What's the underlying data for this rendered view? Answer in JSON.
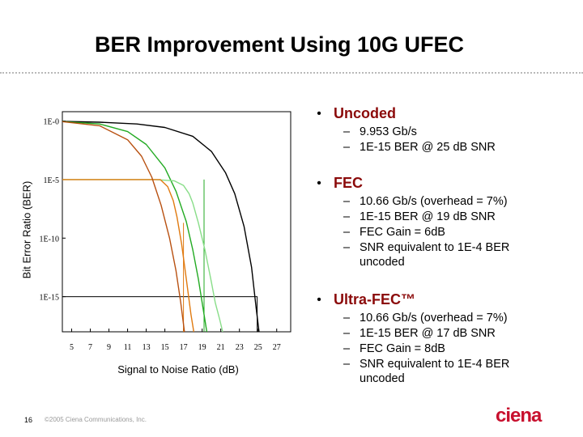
{
  "title": "BER Improvement Using 10G UFEC",
  "chart_data": {
    "type": "line",
    "xlabel": "Signal to Noise Ratio (dB)",
    "ylabel": "Bit Error Ratio (BER)",
    "x_ticks": [
      "5",
      "7",
      "9",
      "11",
      "13",
      "15",
      "17",
      "19",
      "21",
      "23",
      "25",
      "27"
    ],
    "y_ticks": [
      "1E-0",
      "1E-5",
      "1E-10",
      "1E-15"
    ],
    "xlim": [
      4,
      28.5
    ],
    "ylim": [
      -18,
      0.8
    ],
    "grid": false,
    "series": [
      {
        "color": "#000000",
        "x": [
          4,
          8,
          12,
          15,
          18,
          20,
          21.5,
          22.5,
          23.5,
          24.3,
          24.8,
          25.1
        ],
        "y": [
          -0.03,
          -0.1,
          -0.25,
          -0.55,
          -1.3,
          -2.6,
          -4.4,
          -6.2,
          -9,
          -12.5,
          -16,
          -18
        ]
      },
      {
        "color": "#22aa22",
        "x": [
          4,
          8,
          11,
          13,
          15,
          16.2,
          17.3,
          18,
          18.6,
          19.1,
          19.5
        ],
        "y": [
          -0.04,
          -0.25,
          -0.9,
          -2.0,
          -4.0,
          -6.0,
          -8.6,
          -11,
          -13.5,
          -16,
          -18
        ]
      },
      {
        "color": "#88dd88",
        "x": [
          4,
          14,
          16,
          17,
          17.6,
          18.0,
          18.6,
          19.3,
          20.0,
          20.4,
          20.9,
          21.2
        ],
        "y": [
          -5,
          -5,
          -5.1,
          -5.5,
          -6.2,
          -7.0,
          -8.7,
          -11,
          -13.8,
          -15.5,
          -17,
          -18
        ]
      },
      {
        "color": "#e07a10",
        "x": [
          4,
          14.5,
          15.3,
          15.9,
          16.3,
          16.8,
          17.3,
          17.8,
          18.1
        ],
        "y": [
          -5,
          -5,
          -5.6,
          -6.8,
          -8.2,
          -10.5,
          -13.5,
          -16.5,
          -18
        ]
      },
      {
        "color": "#b85010",
        "x": [
          4,
          8,
          11,
          12.5,
          13.6,
          14.6,
          15.5,
          16.2,
          16.7,
          17.1
        ],
        "y": [
          -0.05,
          -0.4,
          -1.6,
          -3.0,
          -4.8,
          -7.2,
          -10,
          -12.8,
          -15.5,
          -18
        ]
      }
    ],
    "guides": [
      {
        "color": "#000000",
        "x": [
          4,
          24.9,
          24.9
        ],
        "y": [
          -15,
          -15,
          -18
        ]
      },
      {
        "color": "#22aa22",
        "x": [
          19.2,
          19.2
        ],
        "y": [
          -5,
          -18
        ]
      },
      {
        "color": "#e07a10",
        "x": [
          17.0,
          17.0
        ],
        "y": [
          -8.7,
          -18
        ]
      }
    ]
  },
  "bullets": [
    {
      "head": "Uncoded",
      "items": [
        "9.953 Gb/s",
        "1E-15 BER @ 25 dB SNR"
      ]
    },
    {
      "head": "FEC",
      "items": [
        "10.66 Gb/s (overhead = 7%)",
        "1E-15 BER @ 19 dB SNR",
        "FEC Gain = 6dB",
        "SNR equivalent to 1E-4 BER uncoded"
      ]
    },
    {
      "head": "Ultra-FEC™",
      "items": [
        "10.66 Gb/s (overhead = 7%)",
        "1E-15 BER @ 17 dB SNR",
        "FEC Gain = 8dB",
        "SNR equivalent to 1E-4 BER uncoded"
      ]
    }
  ],
  "bullet_symbol": "•",
  "dash_symbol": "–",
  "footer": {
    "page_number": "16",
    "copyright": "©2005 Ciena Communications, Inc.",
    "logo": "ciena"
  }
}
